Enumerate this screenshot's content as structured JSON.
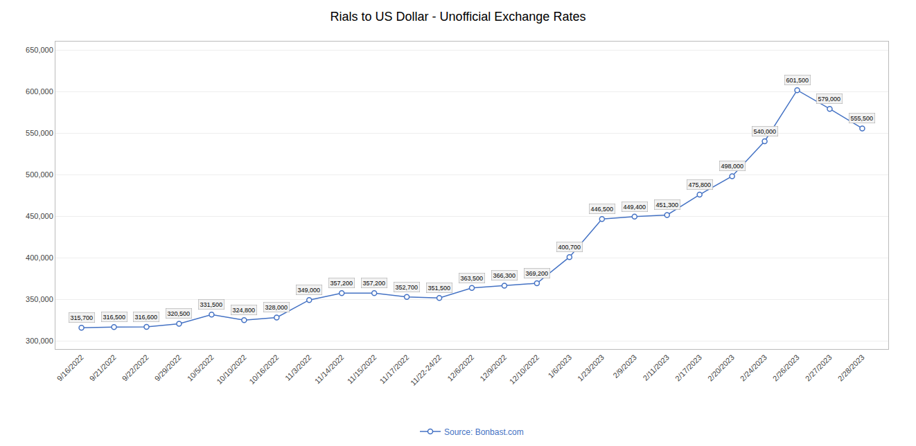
{
  "chart_data": {
    "type": "line",
    "title": "Rials to US Dollar - Unofficial Exchange Rates",
    "categories": [
      "9/16/2022",
      "9/21/2022",
      "9/22/2022",
      "9/29/2022",
      "10/5/2022",
      "10/10/2022",
      "10/16/2022",
      "11/3/2022",
      "11/14/2022",
      "11/15/2022",
      "11/17/2022",
      "11/22-24/22",
      "12/6/2022",
      "12/9/2022",
      "12/10/2022",
      "1/6/2023",
      "1/23/2023",
      "2/9/2023",
      "2/11/2023",
      "2/17/2023",
      "2/20/2023",
      "2/24/2023",
      "2/26/2023",
      "2/27/2023",
      "2/28/2023"
    ],
    "series": [
      {
        "name": "Source: Bonbast.com",
        "color": "#4472c4",
        "values": [
          315700,
          316500,
          316600,
          320500,
          331500,
          324800,
          328000,
          349000,
          357200,
          357200,
          352700,
          351500,
          363500,
          366300,
          369200,
          400700,
          446500,
          449400,
          451300,
          475800,
          498000,
          540000,
          601500,
          579000,
          555500
        ],
        "value_labels": [
          "315,700",
          "316,500",
          "316,600",
          "320,500",
          "331,500",
          "324,800",
          "328,000",
          "349,000",
          "357,200",
          "357,200",
          "352,700",
          "351,500",
          "363,500",
          "366,300",
          "369,200",
          "400,700",
          "446,500",
          "449,400",
          "451,300",
          "475,800",
          "498,000",
          "540,000",
          "601,500",
          "579,000",
          "555,500"
        ]
      }
    ],
    "ylim": [
      290000,
      660000
    ],
    "yticks": [
      {
        "value": 300000,
        "label": "300,000"
      },
      {
        "value": 350000,
        "label": "350,000"
      },
      {
        "value": 400000,
        "label": "400,000"
      },
      {
        "value": 450000,
        "label": "450,000"
      },
      {
        "value": 500000,
        "label": "500,000"
      },
      {
        "value": 550000,
        "label": "550,000"
      },
      {
        "value": 600000,
        "label": "600,000"
      },
      {
        "value": 650000,
        "label": "650,000"
      }
    ],
    "grid": true,
    "legend": "bottom",
    "data_labels": true,
    "marker": "circle",
    "line_style": "solid"
  }
}
